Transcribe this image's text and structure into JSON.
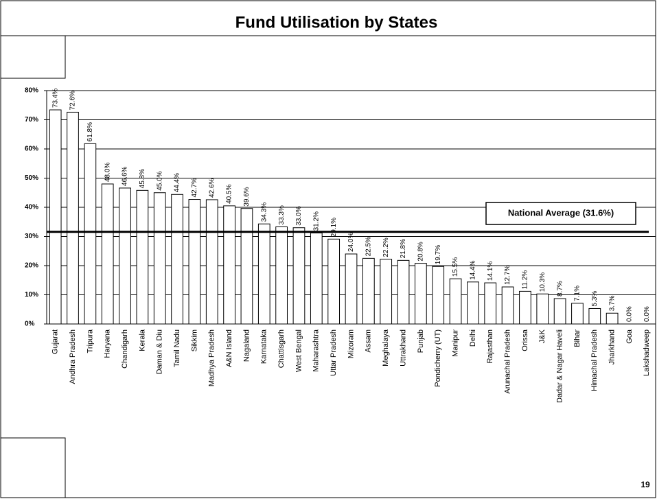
{
  "chart_data": {
    "type": "bar",
    "title": "Fund Utilisation by States",
    "categories": [
      "Gujarat",
      "Andhra Pradesh",
      "Tripura",
      "Haryana",
      "Chandigarh",
      "Kerala",
      "Daman & Diu",
      "Tamil Nadu",
      "Sikkim",
      "Madhya Pradesh",
      "A&N Island",
      "Nagaland",
      "Karnataka",
      "Chattisgarh",
      "West Bengal",
      "Maharashtra",
      "Uttar Pradesh",
      "Mizoram",
      "Assam",
      "Meghalaya",
      "Uttrakhand",
      "Punjab",
      "Pondicherry (UT)",
      "Manipur",
      "Delhi",
      "Rajasthan",
      "Arunachal Pradesh",
      "Orissa",
      "J&K",
      "Dadar & Nagar Haveli",
      "Bihar",
      "Himachal Pradesh",
      "Jharkhand",
      "Goa",
      "Lakshadweep"
    ],
    "values": [
      73.4,
      72.6,
      61.8,
      48.0,
      46.6,
      45.8,
      45.0,
      44.4,
      42.7,
      42.6,
      40.5,
      39.6,
      34.3,
      33.3,
      33.0,
      31.2,
      29.1,
      24.0,
      22.5,
      22.2,
      21.8,
      20.8,
      19.7,
      15.5,
      14.4,
      14.1,
      12.7,
      11.2,
      10.3,
      8.7,
      7.1,
      5.3,
      3.7,
      0.0,
      0.0
    ],
    "value_labels": [
      "73.4%",
      "72.6%",
      "61.8%",
      "48.0%",
      "46.6%",
      "45.8%",
      "45.0%",
      "44.4%",
      "42.7%",
      "42.6%",
      "40.5%",
      "39.6%",
      "34.3%",
      "33.3%",
      "33.0%",
      "31.2%",
      "29.1%",
      "24.0%",
      "22.5%",
      "22.2%",
      "21.8%",
      "20.8%",
      "19.7%",
      "15.5%",
      "14.4%",
      "14.1%",
      "12.7%",
      "11.2%",
      "10.3%",
      "8.7%",
      "7.1%",
      "5.3%",
      "3.7%",
      "0.0%",
      "0.0%"
    ],
    "color": "#ffffff",
    "ylim": [
      0,
      80
    ],
    "yticks": [
      {
        "value": 0,
        "label": "0%"
      },
      {
        "value": 10,
        "label": "10%"
      },
      {
        "value": 20,
        "label": "20%"
      },
      {
        "value": 30,
        "label": "30%"
      },
      {
        "value": 40,
        "label": "40%"
      },
      {
        "value": 50,
        "label": "50%"
      },
      {
        "value": 60,
        "label": "60%"
      },
      {
        "value": 70,
        "label": "70%"
      },
      {
        "value": 80,
        "label": "80%"
      }
    ],
    "grid": true,
    "reference_line": {
      "value": 31.6,
      "label": "National Average (31.6%)"
    },
    "page_number": "19"
  }
}
